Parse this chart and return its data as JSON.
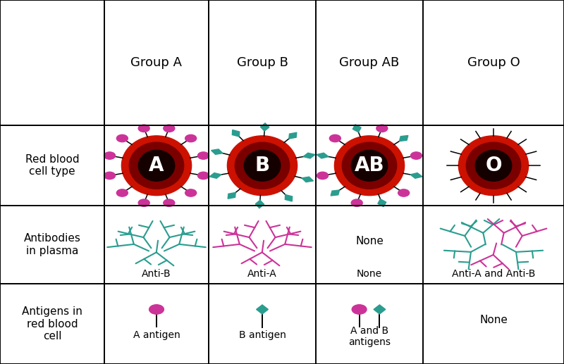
{
  "columns": [
    "Group A",
    "Group B",
    "Group AB",
    "Group O"
  ],
  "row_labels": [
    "Red blood\ncell type",
    "Antibodies\nin plasma",
    "Antigens in\nred blood\ncell"
  ],
  "antibody_labels": [
    "Anti-B",
    "Anti-A",
    "None",
    "Anti-A and Anti-B"
  ],
  "antigen_labels": [
    "A antigen",
    "B antigen",
    "A and B\nantigens",
    "None"
  ],
  "blood_type_labels": [
    "A",
    "B",
    "AB",
    "O"
  ],
  "pink_color": "#cc3399",
  "teal_color": "#2a9d8f",
  "red_dark": "#8b0000",
  "red_bright": "#cc0000",
  "bg_color": "#ffffff",
  "text_color": "#000000",
  "label_fontsize": 11,
  "col_header_fontsize": 13,
  "blood_label_fontsize": 20,
  "col_bounds": [
    0.0,
    0.185,
    0.37,
    0.56,
    0.75,
    1.0
  ],
  "row_bounds": [
    0.0,
    0.22,
    0.435,
    0.655,
    1.0
  ]
}
